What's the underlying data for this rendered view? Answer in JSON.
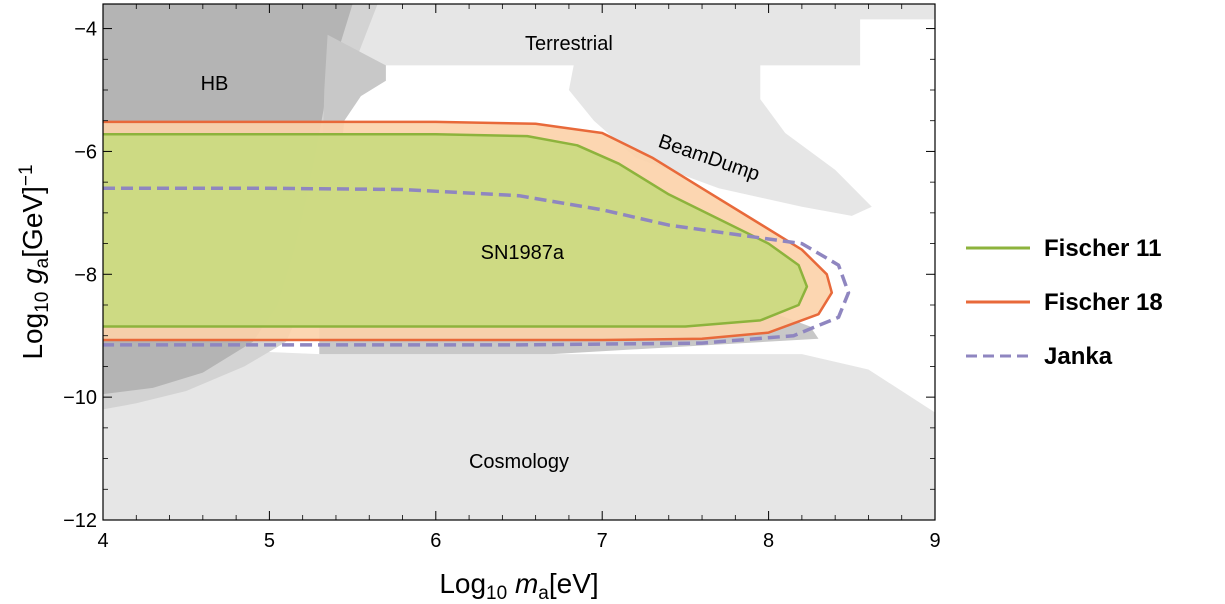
{
  "chart_data": {
    "type": "area",
    "xlabel": {
      "prefix": "Log",
      "sub": "10",
      "var": "m",
      "var_sub": "a",
      "suffix": "[eV]"
    },
    "ylabel": {
      "prefix": "Log",
      "sub": "10",
      "var": "g",
      "var_sub": "a",
      "suffix": "[GeV]",
      "sup": "−1"
    },
    "xlim": [
      4,
      9
    ],
    "ylim": [
      -12,
      -3.6
    ],
    "x_ticks": [
      4,
      5,
      6,
      7,
      8,
      9
    ],
    "x_tick_labels": [
      "4",
      "5",
      "6",
      "7",
      "8",
      "9"
    ],
    "y_ticks": [
      -12,
      -10,
      -8,
      -6,
      -4
    ],
    "y_tick_labels": [
      "−12",
      "−10",
      "−8",
      "−6",
      "−4"
    ],
    "grid": false,
    "legend_position": "right",
    "colors": {
      "fischer11_line": "#8db33c",
      "fischer11_fill": "#c9da7e",
      "fischer18_line": "#e8693a",
      "fischer18_fill": "#fcd2a8",
      "janka_line": "#8f86c0",
      "excluded_light": "#e6e6e6",
      "excluded_mid": "#d3d3d3",
      "hb_dark": "#b4b4b4",
      "sn_label": "#cc1111"
    },
    "annotations": [
      {
        "id": "terrestrial",
        "text": "Terrestrial",
        "x": 6.8,
        "y": -4.35,
        "rotate": 0,
        "color": "#000000"
      },
      {
        "id": "hb",
        "text": "HB",
        "x": 4.67,
        "y": -5.0,
        "rotate": 0,
        "color": "#000000"
      },
      {
        "id": "beamdump",
        "text": "BeamDump",
        "x": 7.63,
        "y": -6.2,
        "rotate": 19,
        "color": "#000000"
      },
      {
        "id": "sn1987a",
        "text": "SN1987a",
        "x": 6.52,
        "y": -7.75,
        "rotate": 0,
        "color": "#cc1111",
        "size": 32
      },
      {
        "id": "cosmology",
        "text": "Cosmology",
        "x": 6.5,
        "y": -11.15,
        "rotate": 0,
        "color": "#000000"
      }
    ],
    "regions": [
      {
        "name": "cosmology",
        "color": "#e6e6e6",
        "points": [
          [
            4,
            -9.15
          ],
          [
            5.3,
            -9.3
          ],
          [
            6.5,
            -9.3
          ],
          [
            7.6,
            -9.3
          ],
          [
            8.2,
            -9.3
          ],
          [
            8.6,
            -9.55
          ],
          [
            9,
            -10.25
          ],
          [
            9,
            -12
          ],
          [
            4,
            -12
          ]
        ]
      },
      {
        "name": "terrestrial",
        "color": "#e6e6e6",
        "points": [
          [
            5.05,
            -3.6
          ],
          [
            9,
            -3.6
          ],
          [
            9,
            -3.85
          ],
          [
            8.55,
            -3.85
          ],
          [
            8.55,
            -4.6
          ],
          [
            7.0,
            -4.6
          ],
          [
            5.05,
            -4.6
          ]
        ]
      },
      {
        "name": "beamdump",
        "color": "#e6e6e6",
        "points": [
          [
            6.9,
            -3.6
          ],
          [
            7.6,
            -3.6
          ],
          [
            7.95,
            -4.5
          ],
          [
            7.95,
            -5.15
          ],
          [
            8.1,
            -5.7
          ],
          [
            8.4,
            -6.3
          ],
          [
            8.62,
            -6.9
          ],
          [
            8.5,
            -7.05
          ],
          [
            8.2,
            -6.9
          ],
          [
            7.7,
            -6.6
          ],
          [
            7.2,
            -6.1
          ],
          [
            6.95,
            -5.5
          ],
          [
            6.8,
            -5.0
          ]
        ]
      },
      {
        "name": "hb-wide",
        "color": "#d3d3d3",
        "points": [
          [
            4,
            -3.6
          ],
          [
            5.65,
            -3.6
          ],
          [
            5.55,
            -4.3
          ],
          [
            5.45,
            -5.0
          ],
          [
            5.38,
            -5.6
          ],
          [
            5.33,
            -6.2
          ],
          [
            5.3,
            -7.0
          ],
          [
            5.25,
            -7.8
          ],
          [
            5.2,
            -8.5
          ],
          [
            5.1,
            -9.1
          ],
          [
            4.85,
            -9.5
          ],
          [
            4.5,
            -9.9
          ],
          [
            4.2,
            -10.1
          ],
          [
            4,
            -10.2
          ]
        ]
      },
      {
        "name": "hb-core",
        "color": "#b4b4b4",
        "points": [
          [
            4,
            -3.6
          ],
          [
            5.5,
            -3.6
          ],
          [
            5.42,
            -4.3
          ],
          [
            5.34,
            -5.1
          ],
          [
            5.28,
            -6.0
          ],
          [
            5.22,
            -6.8
          ],
          [
            5.15,
            -7.6
          ],
          [
            5.05,
            -8.5
          ],
          [
            4.9,
            -9.1
          ],
          [
            4.6,
            -9.6
          ],
          [
            4.3,
            -9.85
          ],
          [
            4,
            -9.95
          ]
        ]
      },
      {
        "name": "overlap-band",
        "color": "#c8c8c8",
        "points": [
          [
            5.35,
            -4.1
          ],
          [
            5.7,
            -4.6
          ],
          [
            5.7,
            -4.85
          ],
          [
            5.55,
            -5.1
          ],
          [
            5.45,
            -5.5
          ],
          [
            5.42,
            -6.3
          ],
          [
            5.38,
            -6.9
          ],
          [
            5.43,
            -7.0
          ],
          [
            5.55,
            -7.4
          ],
          [
            5.7,
            -7.9
          ],
          [
            6.1,
            -8.1
          ],
          [
            6.8,
            -8.35
          ],
          [
            7.4,
            -8.5
          ],
          [
            8.0,
            -8.6
          ],
          [
            8.25,
            -8.85
          ],
          [
            8.3,
            -9.05
          ],
          [
            6.7,
            -9.3
          ],
          [
            5.3,
            -9.3
          ],
          [
            5.3,
            -7.0
          ],
          [
            5.32,
            -6.0
          ],
          [
            5.33,
            -5.0
          ]
        ]
      }
    ],
    "series": [
      {
        "name": "Fischer 18",
        "style": "solid",
        "line": "#e8693a",
        "fill": "#fcd2a8",
        "fill_opacity": 0.9,
        "points": [
          [
            4,
            -5.52
          ],
          [
            5.0,
            -5.52
          ],
          [
            6.0,
            -5.52
          ],
          [
            6.6,
            -5.55
          ],
          [
            7.0,
            -5.7
          ],
          [
            7.3,
            -6.1
          ],
          [
            7.6,
            -6.6
          ],
          [
            7.9,
            -7.1
          ],
          [
            8.2,
            -7.6
          ],
          [
            8.35,
            -8.0
          ],
          [
            8.38,
            -8.3
          ],
          [
            8.3,
            -8.65
          ],
          [
            8.0,
            -8.95
          ],
          [
            7.6,
            -9.05
          ],
          [
            7.0,
            -9.07
          ],
          [
            4,
            -9.07
          ]
        ]
      },
      {
        "name": "Fischer 11",
        "style": "solid",
        "line": "#8db33c",
        "fill": "#c9da7e",
        "fill_opacity": 0.9,
        "points": [
          [
            4,
            -5.72
          ],
          [
            5.0,
            -5.72
          ],
          [
            6.0,
            -5.72
          ],
          [
            6.55,
            -5.75
          ],
          [
            6.85,
            -5.9
          ],
          [
            7.1,
            -6.2
          ],
          [
            7.4,
            -6.7
          ],
          [
            7.7,
            -7.1
          ],
          [
            8.0,
            -7.5
          ],
          [
            8.18,
            -7.85
          ],
          [
            8.23,
            -8.2
          ],
          [
            8.18,
            -8.5
          ],
          [
            7.95,
            -8.75
          ],
          [
            7.5,
            -8.85
          ],
          [
            6.8,
            -8.85
          ],
          [
            4,
            -8.85
          ]
        ]
      },
      {
        "name": "Janka",
        "style": "dashed",
        "line": "#8f86c0",
        "fill": "none",
        "fill_opacity": 0,
        "points": [
          [
            4,
            -6.6
          ],
          [
            5.0,
            -6.6
          ],
          [
            5.8,
            -6.62
          ],
          [
            6.5,
            -6.72
          ],
          [
            7.0,
            -6.95
          ],
          [
            7.4,
            -7.2
          ],
          [
            7.8,
            -7.35
          ],
          [
            8.2,
            -7.5
          ],
          [
            8.42,
            -7.85
          ],
          [
            8.48,
            -8.3
          ],
          [
            8.42,
            -8.7
          ],
          [
            8.15,
            -9.0
          ],
          [
            7.6,
            -9.12
          ],
          [
            6.5,
            -9.15
          ],
          [
            4,
            -9.15
          ]
        ]
      }
    ],
    "legend": [
      {
        "label": "Fischer 11",
        "color": "#8db33c",
        "style": "solid"
      },
      {
        "label": "Fischer 18",
        "color": "#e8693a",
        "style": "solid"
      },
      {
        "label": "Janka",
        "color": "#8f86c0",
        "style": "dashed"
      }
    ]
  }
}
